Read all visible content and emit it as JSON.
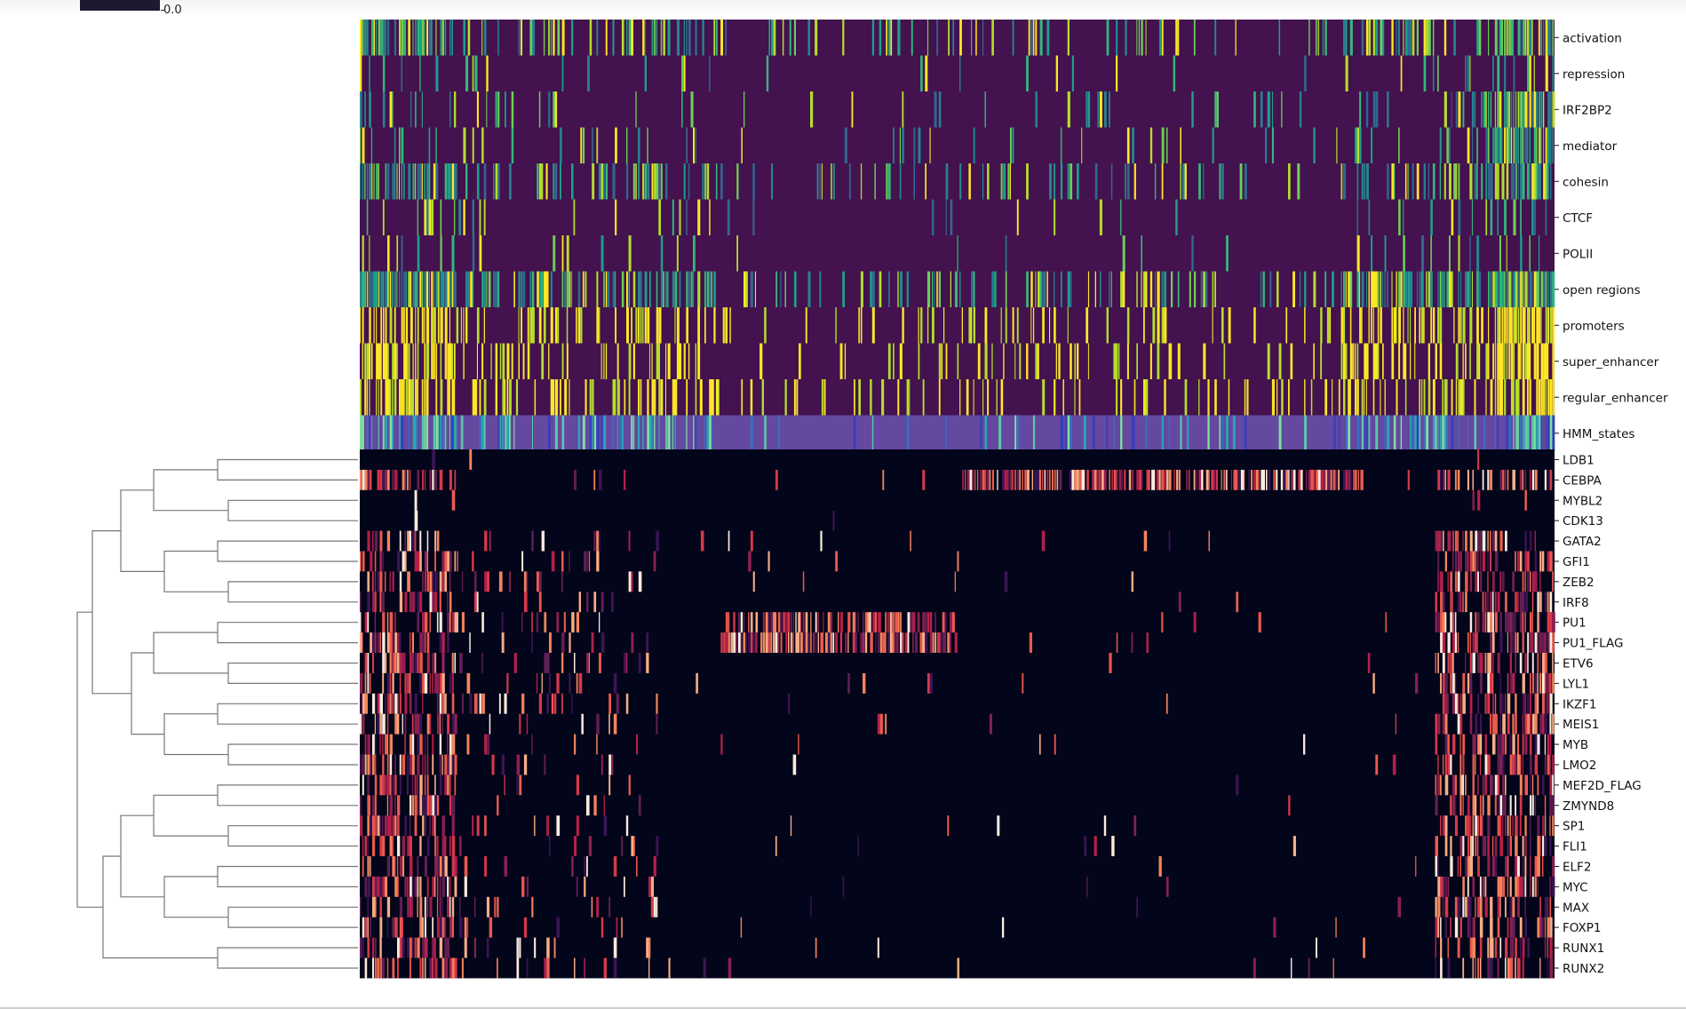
{
  "colorbar": {
    "tick_label": "0.0"
  },
  "chart_data": {
    "type": "heatmap",
    "title": "",
    "xlabel": "",
    "ylabel": "",
    "colorbar_ticks": [
      "0.0"
    ],
    "annotation_tracks": [
      {
        "name": "activation",
        "colormap": "viridis"
      },
      {
        "name": "repression",
        "colormap": "viridis"
      },
      {
        "name": "IRF2BP2",
        "colormap": "viridis"
      },
      {
        "name": "mediator",
        "colormap": "viridis"
      },
      {
        "name": "cohesin",
        "colormap": "viridis"
      },
      {
        "name": "CTCF",
        "colormap": "viridis"
      },
      {
        "name": "POLII",
        "colormap": "viridis"
      },
      {
        "name": "open regions",
        "colormap": "viridis"
      },
      {
        "name": "promoters",
        "colormap": "viridis"
      },
      {
        "name": "super_enhancer",
        "colormap": "viridis"
      },
      {
        "name": "regular_enhancer",
        "colormap": "viridis"
      },
      {
        "name": "HMM_states",
        "colormap": "categorical"
      }
    ],
    "heatmap_rows": [
      "LDB1",
      "CEBPA",
      "MYBL2",
      "CDK13",
      "GATA2",
      "GFI1",
      "ZEB2",
      "IRF8",
      "PU1",
      "PU1_FLAG",
      "ETV6",
      "LYL1",
      "IKZF1",
      "MEIS1",
      "MYB",
      "LMO2",
      "MEF2D_FLAG",
      "ZMYND8",
      "SP1",
      "FLI1",
      "ELF2",
      "MYC",
      "MAX",
      "FOXP1",
      "RUNX1",
      "RUNX2"
    ],
    "heatmap_colormap": "rocket",
    "row_dendrogram": true,
    "legend": "none",
    "grid": false
  }
}
